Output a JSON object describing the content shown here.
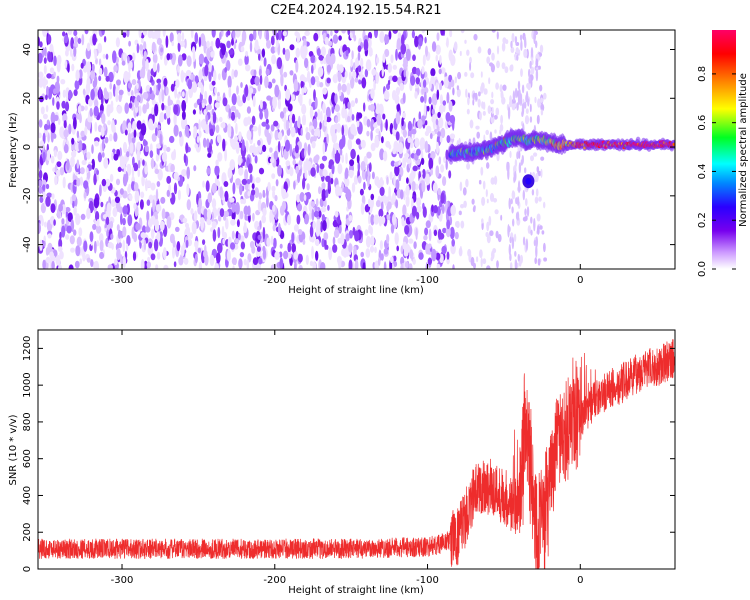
{
  "title": "C2E4.2024.192.15.54.R21",
  "colors": {
    "spectrogram_noise": "#7a2cf0",
    "snr_trace": "#ee2c2c",
    "colorbar": [
      "#ffffff",
      "#cc99ff",
      "#7700ee",
      "#2a00ff",
      "#0088ff",
      "#00ffff",
      "#00ff22",
      "#ffff00",
      "#ff8800",
      "#ff0000",
      "#ff0066"
    ]
  },
  "chart_data": [
    {
      "type": "heatmap",
      "title": "",
      "xlabel": "Height of straight line (km)",
      "ylabel": "Frequency (Hz)",
      "xlim": [
        -355,
        62
      ],
      "ylim": [
        -50,
        48
      ],
      "x_ticks": [
        "-300",
        "-200",
        "-100",
        "0"
      ],
      "x_tick_values": [
        -300,
        -200,
        -100,
        0
      ],
      "y_ticks": [
        "-40",
        "-20",
        "0",
        "20",
        "40"
      ],
      "y_tick_values": [
        -40,
        -20,
        0,
        20,
        40
      ],
      "colorbar": {
        "label": "Normalized spectral amplitude",
        "range": [
          0,
          0.98
        ],
        "ticks": [
          "0.0",
          "0.2",
          "0.4",
          "0.6",
          "0.8"
        ],
        "tick_values": [
          0.0,
          0.2,
          0.4,
          0.6,
          0.8
        ]
      },
      "signal_ridge": {
        "x": [
          -85,
          -78,
          -70,
          -60,
          -50,
          -45,
          -40,
          -35,
          -30,
          -25,
          -20,
          -15,
          -10,
          0,
          10,
          20,
          30,
          40,
          50,
          62
        ],
        "y": [
          -3,
          -2,
          -2,
          -1,
          2,
          3,
          4,
          2,
          3,
          3,
          2,
          1,
          1,
          1,
          1,
          1,
          1,
          1,
          1,
          1
        ],
        "amplitude": [
          0.35,
          0.4,
          0.4,
          0.45,
          0.5,
          0.5,
          0.5,
          0.45,
          0.5,
          0.55,
          0.6,
          0.7,
          0.75,
          0.85,
          0.9,
          0.92,
          0.93,
          0.94,
          0.95,
          0.95
        ]
      }
    },
    {
      "type": "line",
      "title": "",
      "xlabel": "Height of straight line (km)",
      "ylabel": "SNR (10 * v/v)",
      "xlim": [
        -355,
        62
      ],
      "ylim": [
        0,
        1300
      ],
      "x_ticks": [
        "-300",
        "-200",
        "-100",
        "0"
      ],
      "x_tick_values": [
        -300,
        -200,
        -100,
        0
      ],
      "y_ticks": [
        "0",
        "200",
        "400",
        "600",
        "800",
        "1000",
        "1200"
      ],
      "y_tick_values": [
        0,
        200,
        400,
        600,
        800,
        1000,
        1200
      ],
      "series": [
        {
          "x": [
            -355,
            -300,
            -250,
            -200,
            -150,
            -100,
            -90,
            -80,
            -75,
            -70,
            -65,
            -60,
            -55,
            -50,
            -45,
            -40,
            -35,
            -30,
            -25,
            -20,
            -15,
            -10,
            -5,
            0,
            10,
            20,
            30,
            40,
            50,
            62
          ],
          "y": [
            110,
            110,
            110,
            110,
            110,
            120,
            140,
            180,
            280,
            400,
            450,
            450,
            420,
            400,
            350,
            330,
            800,
            300,
            200,
            450,
            700,
            700,
            800,
            800,
            920,
            980,
            1020,
            1080,
            1100,
            1150
          ]
        }
      ]
    }
  ]
}
